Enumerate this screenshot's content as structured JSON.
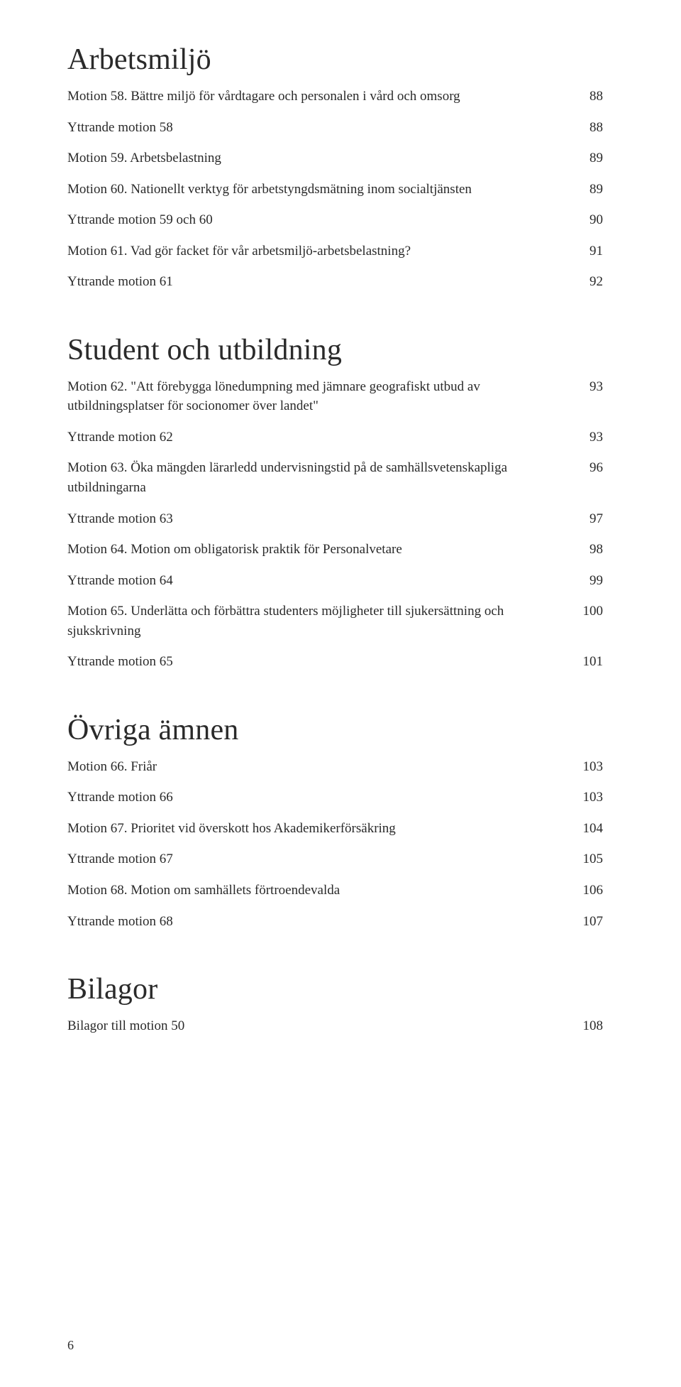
{
  "sections": [
    {
      "heading": "Arbetsmiljö",
      "rows": [
        {
          "label": "Motion 58. Bättre miljö för vårdtagare och personalen i vård och omsorg",
          "page": "88"
        },
        {
          "label": "Yttrande motion 58",
          "page": "88"
        },
        {
          "label": "Motion 59. Arbetsbelastning",
          "page": "89"
        },
        {
          "label": "Motion 60. Nationellt verktyg för arbetstyngdsmätning inom socialtjänsten",
          "page": "89"
        },
        {
          "label": "Yttrande motion 59 och 60",
          "page": "90"
        },
        {
          "label": "Motion 61. Vad gör facket för vår arbetsmiljö-arbetsbelastning?",
          "page": "91"
        },
        {
          "label": "Yttrande motion 61",
          "page": "92"
        }
      ]
    },
    {
      "heading": "Student och utbildning",
      "rows": [
        {
          "label": "Motion 62. \"Att förebygga lönedumpning med jämnare geografiskt utbud av utbildningsplatser för socionomer över landet\"",
          "page": "93"
        },
        {
          "label": "Yttrande motion 62",
          "page": "93"
        },
        {
          "label": "Motion 63. Öka mängden lärarledd undervisningstid på de samhällsvetenskapliga utbildningarna",
          "page": "96"
        },
        {
          "label": "Yttrande motion 63",
          "page": "97"
        },
        {
          "label": "Motion 64. Motion om obligatorisk praktik för Personalvetare",
          "page": "98"
        },
        {
          "label": "Yttrande motion 64",
          "page": "99"
        },
        {
          "label": "Motion 65. Underlätta och förbättra studenters möjligheter till sjukersättning och sjukskrivning",
          "page": "100"
        },
        {
          "label": "Yttrande motion 65",
          "page": "101"
        }
      ]
    },
    {
      "heading": "Övriga ämnen",
      "rows": [
        {
          "label": "Motion 66. Friår",
          "page": "103"
        },
        {
          "label": "Yttrande motion 66",
          "page": "103"
        },
        {
          "label": "Motion 67. Prioritet vid överskott hos Akademikerförsäkring",
          "page": "104"
        },
        {
          "label": "Yttrande motion 67",
          "page": "105"
        },
        {
          "label": "Motion 68. Motion om samhällets förtroendevalda",
          "page": "106"
        },
        {
          "label": "Yttrande motion 68",
          "page": "107"
        }
      ]
    },
    {
      "heading": "Bilagor",
      "rows": [
        {
          "label": "Bilagor till motion 50",
          "page": "108"
        }
      ]
    }
  ],
  "page_number": "6"
}
